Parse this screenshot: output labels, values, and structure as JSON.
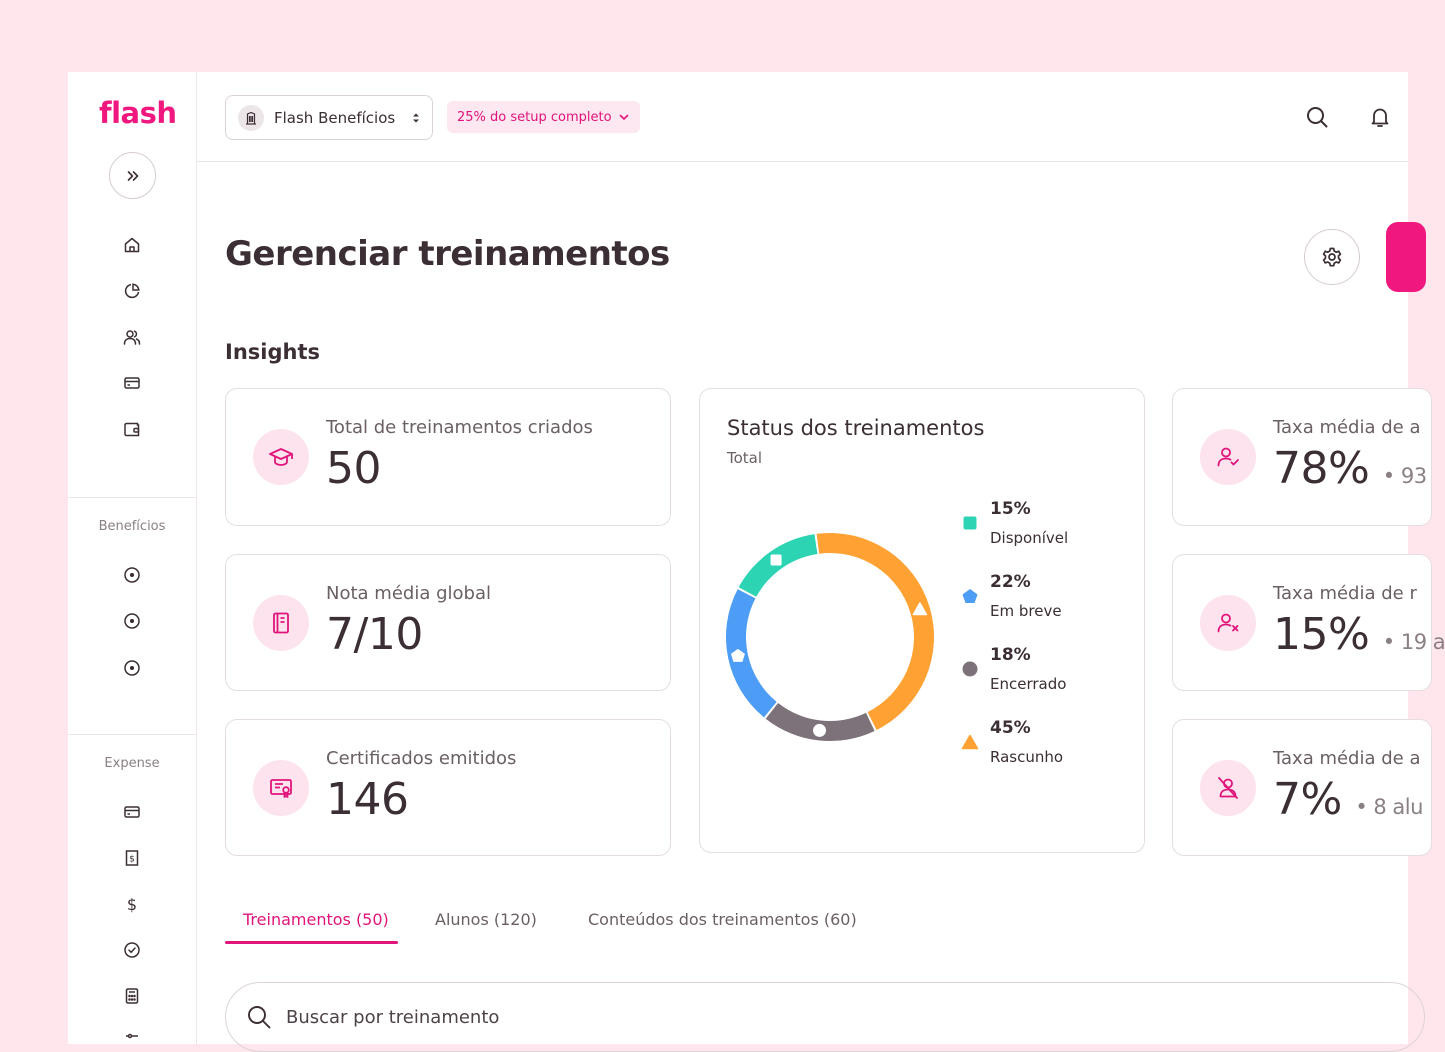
{
  "brand": {
    "logo_text": "flash"
  },
  "sidebar": {
    "sections": [
      {
        "label": "Benefícios"
      },
      {
        "label": "Expense"
      }
    ]
  },
  "header": {
    "company": "Flash Benefícios",
    "setup_badge": "25% do setup completo"
  },
  "page": {
    "title": "Gerenciar treinamentos"
  },
  "insights": {
    "title": "Insights",
    "stats": [
      {
        "label": "Total de treinamentos criados",
        "value": "50",
        "extra": ""
      },
      {
        "label": "Nota média global",
        "value": "7/10",
        "extra": ""
      },
      {
        "label": "Certificados emitidos",
        "value": "146",
        "extra": ""
      }
    ],
    "rates": [
      {
        "label": "Taxa média de a",
        "value": "78%",
        "extra": "• 93"
      },
      {
        "label": "Taxa média de r",
        "value": "15%",
        "extra": "• 19 a"
      },
      {
        "label": "Taxa média de a",
        "value": "7%",
        "extra": "• 8 alu"
      }
    ]
  },
  "status_chart": {
    "title": "Status dos treinamentos",
    "subtitle": "Total",
    "legend": [
      {
        "pct": "15%",
        "name": "Disponível"
      },
      {
        "pct": "22%",
        "name": "Em breve"
      },
      {
        "pct": "18%",
        "name": "Encerrado"
      },
      {
        "pct": "45%",
        "name": "Rascunho"
      }
    ]
  },
  "chart_data": {
    "type": "pie",
    "title": "Status dos treinamentos",
    "subtitle": "Total",
    "categories": [
      "Disponível",
      "Em breve",
      "Encerrado",
      "Rascunho"
    ],
    "values": [
      15,
      22,
      18,
      45
    ],
    "colors": [
      "#2dd4b4",
      "#4d9cf5",
      "#7d7279",
      "#ffa133"
    ],
    "legend": "right"
  },
  "tabs": [
    {
      "label": "Treinamentos (50)"
    },
    {
      "label": "Alunos (120)"
    },
    {
      "label": "Conteúdos dos treinamentos (60)"
    }
  ],
  "search": {
    "placeholder": "Buscar por treinamento"
  },
  "colors": {
    "accent": "#e0147a",
    "brand": "#f0187f",
    "icon_bg": "#fde3ee",
    "page_bg": "#ffe6ec"
  }
}
